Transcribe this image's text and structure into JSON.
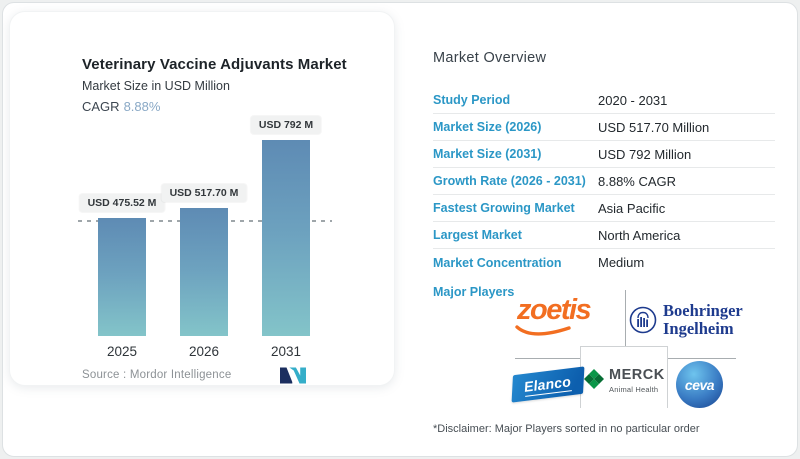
{
  "chart_card": {
    "title": "Veterinary Vaccine Adjuvants Market",
    "subtitle": "Market Size in USD Million",
    "cagr_label": "CAGR",
    "cagr_value": "8.88%",
    "source_label": "Source :  Mordor Intelligence"
  },
  "chart_data": {
    "type": "bar",
    "title": "Veterinary Vaccine Adjuvants Market",
    "ylabel": "Market Size in USD Million",
    "categories": [
      "2025",
      "2026",
      "2031"
    ],
    "values": [
      475.52,
      517.7,
      792
    ],
    "bar_labels": [
      "USD 475.52 M",
      "USD 517.70 M",
      "USD 792 M"
    ],
    "baseline_value": 475.52,
    "ylim": [
      0,
      900
    ],
    "grid": "single dashed reference line at 2025 value",
    "colors": {
      "bar_top": "#5e8bb4",
      "bar_bottom": "#83c4c9",
      "cagr_accent": "#8aa9c6"
    }
  },
  "overview": {
    "title": "Market Overview",
    "rows": [
      {
        "label": "Study Period",
        "value": "2020 - 2031"
      },
      {
        "label": "Market Size (2026)",
        "value": "USD 517.70 Million"
      },
      {
        "label": "Market Size (2031)",
        "value": "USD 792 Million"
      },
      {
        "label": "Growth Rate (2026 - 2031)",
        "value": "8.88% CAGR"
      },
      {
        "label": "Fastest Growing Market",
        "value": "Asia Pacific"
      },
      {
        "label": "Largest Market",
        "value": "North America"
      },
      {
        "label": "Market Concentration",
        "value": "Medium"
      }
    ],
    "major_players_label": "Major Players",
    "logos": {
      "zoetis": "zoetis",
      "boehringer_line1": "Boehringer",
      "boehringer_line2": "Ingelheim",
      "elanco": "Elanco",
      "merck": "MERCK",
      "merck_sub": "Animal Health",
      "ceva": "ceva"
    },
    "disclaimer": "*Disclaimer: Major Players sorted in no particular order"
  },
  "brand_colors": {
    "label_blue": "#2b97c6",
    "zoetis_orange": "#f26e21",
    "boehringer_navy": "#1e3b8e",
    "elanco_blue": "#0d5fae",
    "merck_green": "#0a9648",
    "ceva_blue": "#16408c"
  }
}
